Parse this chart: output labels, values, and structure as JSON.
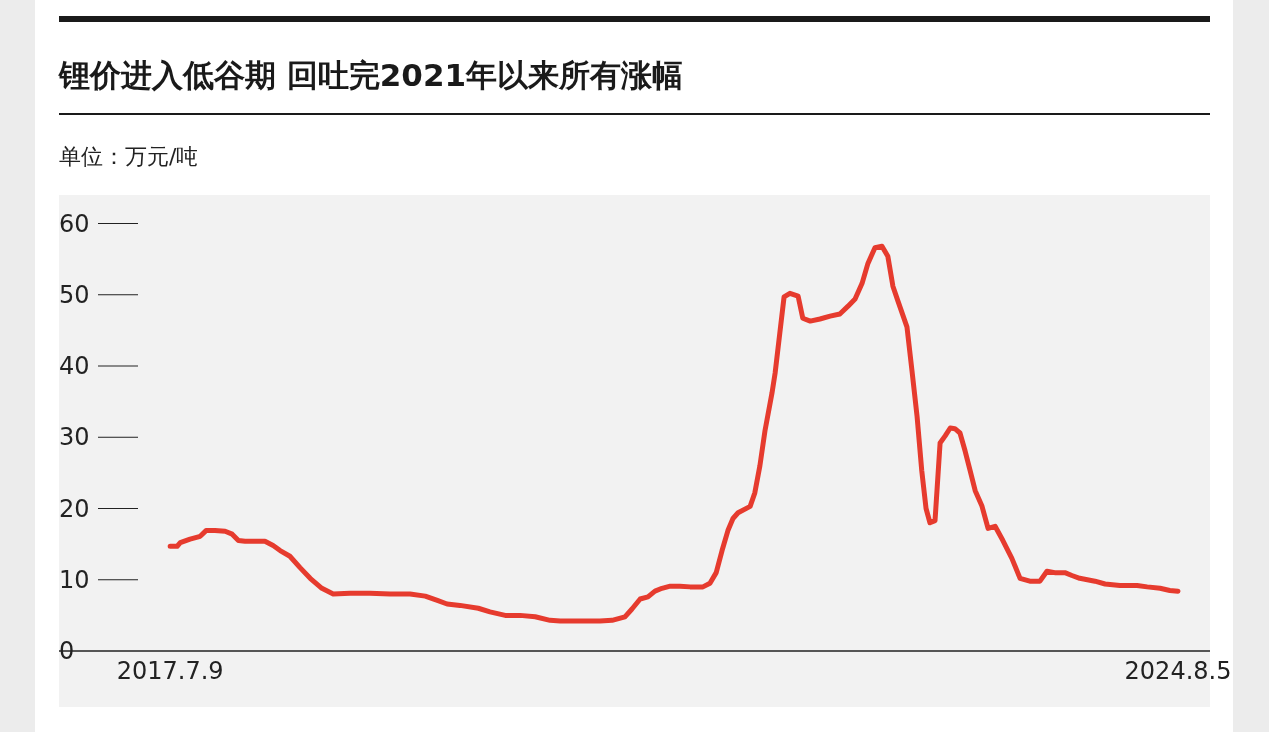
{
  "chart_data": {
    "type": "line",
    "title": "锂价进入低谷期 回吐完2021年以来所有涨幅",
    "subtitle": "单位：万元/吨",
    "x": [
      "2017-07-09",
      "2017-07-27",
      "2017-08-04",
      "2017-08-29",
      "2017-09-24",
      "2017-10-09",
      "2017-11-01",
      "2017-11-27",
      "2017-12-15",
      "2017-12-31",
      "2018-01-17",
      "2018-03-09",
      "2018-03-30",
      "2018-04-17",
      "2018-05-12",
      "2018-06-07",
      "2018-07-03",
      "2018-08-02",
      "2018-08-31",
      "2018-10-13",
      "2018-12-03",
      "2019-01-24",
      "2019-03-16",
      "2019-04-24",
      "2019-05-25",
      "2019-06-19",
      "2019-07-22",
      "2019-09-07",
      "2019-10-07",
      "2019-11-15",
      "2019-12-23",
      "2020-01-31",
      "2020-03-09",
      "2020-04-04",
      "2020-05-25",
      "2020-07-15",
      "2020-08-15",
      "2020-09-17",
      "2020-10-05",
      "2020-10-26",
      "2020-11-15",
      "2020-12-03",
      "2020-12-21",
      "2021-01-11",
      "2021-02-05",
      "2021-03-03",
      "2021-04-05",
      "2021-04-23",
      "2021-05-09",
      "2021-05-24",
      "2021-06-08",
      "2021-06-21",
      "2021-07-04",
      "2021-08-04",
      "2021-08-16",
      "2021-08-29",
      "2021-09-11",
      "2021-09-29",
      "2021-10-07",
      "2021-10-19",
      "2021-10-30",
      "2021-11-14",
      "2021-12-05",
      "2021-12-17",
      "2022-01-05",
      "2022-01-30",
      "2022-02-25",
      "2022-03-22",
      "2022-04-12",
      "2022-04-30",
      "2022-05-18",
      "2022-06-02",
      "2022-06-20",
      "2022-07-08",
      "2022-07-23",
      "2022-08-05",
      "2022-08-18",
      "2022-09-10",
      "2022-09-23",
      "2022-10-06",
      "2022-10-18",
      "2022-10-29",
      "2022-11-08",
      "2022-11-21",
      "2022-12-04",
      "2022-12-17",
      "2022-12-30",
      "2023-01-11",
      "2023-01-24",
      "2023-02-06",
      "2023-02-19",
      "2023-03-04",
      "2023-03-21",
      "2023-04-06",
      "2023-04-24",
      "2023-05-14",
      "2023-06-06",
      "2023-06-27",
      "2023-07-22",
      "2023-08-17",
      "2023-09-04",
      "2023-09-24",
      "2023-10-20",
      "2023-11-07",
      "2023-11-27",
      "2024-01-05",
      "2024-01-31",
      "2024-03-09",
      "2024-04-22",
      "2024-05-18",
      "2024-06-20",
      "2024-07-15",
      "2024-08-05"
    ],
    "series": [
      {
        "color": "#e63b2e",
        "values": [
          14.7,
          14.7,
          15.2,
          15.7,
          16.1,
          16.9,
          16.9,
          16.8,
          16.4,
          15.5,
          15.4,
          15.4,
          14.8,
          14.1,
          13.3,
          11.7,
          10.2,
          8.8,
          8.0,
          8.1,
          8.1,
          8.0,
          8.0,
          7.7,
          7.1,
          6.6,
          6.4,
          6.0,
          5.5,
          5.0,
          5.0,
          4.8,
          4.3,
          4.2,
          4.2,
          4.2,
          4.3,
          4.8,
          5.9,
          7.3,
          7.6,
          8.4,
          8.8,
          9.1,
          9.1,
          9.0,
          9.0,
          9.5,
          11.0,
          14.1,
          16.9,
          18.6,
          19.4,
          20.3,
          22.2,
          26.0,
          30.9,
          36.2,
          39.0,
          44.6,
          49.7,
          50.2,
          49.8,
          46.7,
          46.3,
          46.6,
          47.0,
          47.3,
          48.4,
          49.4,
          51.6,
          54.4,
          56.6,
          56.8,
          55.4,
          51.2,
          49.1,
          45.5,
          39.3,
          32.9,
          25.3,
          20.0,
          18.0,
          18.3,
          29.2,
          30.2,
          31.3,
          31.2,
          30.6,
          28.1,
          25.3,
          22.5,
          20.4,
          17.2,
          17.5,
          15.5,
          13.0,
          10.2,
          9.8,
          9.8,
          11.2,
          11.0,
          11.0,
          10.6,
          10.2,
          9.8,
          9.4,
          9.2,
          9.2,
          9.0,
          8.8,
          8.5,
          8.4
        ]
      }
    ],
    "xlim": [
      "2016-09-27",
      "2024-10-26"
    ],
    "xticks": [
      {
        "value": "2017-07-09",
        "label": "2017.7.9"
      },
      {
        "value": "2024-08-05",
        "label": "2024.8.5"
      }
    ],
    "ylim": [
      0,
      64
    ],
    "yticks": [
      0,
      10,
      20,
      30,
      40,
      50,
      60
    ],
    "grid": false,
    "line_style": "solid"
  }
}
